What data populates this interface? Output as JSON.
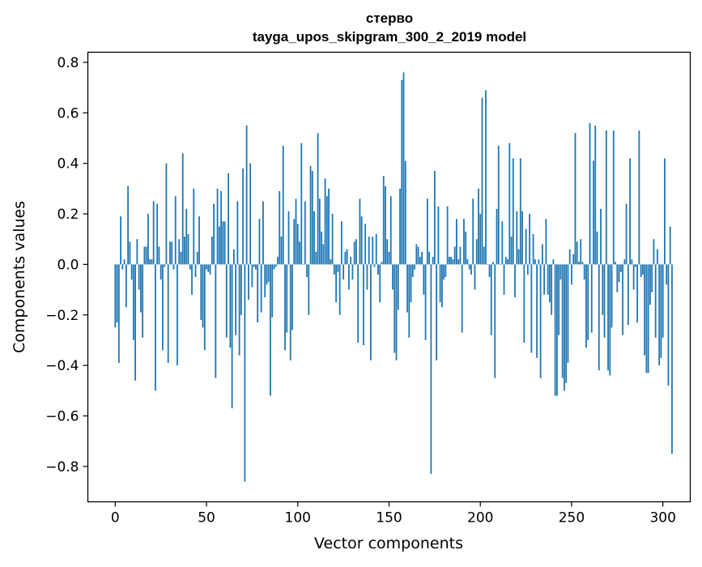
{
  "chart_data": {
    "type": "bar",
    "title_line1": "стерво",
    "title_line2": "tayga_upos_skipgram_300_2_2019 model",
    "xlabel": "Vector components",
    "ylabel": "Components values",
    "xlim": [
      -15,
      315
    ],
    "ylim": [
      -0.94,
      0.84
    ],
    "xticks": [
      0,
      50,
      100,
      150,
      200,
      250,
      300
    ],
    "xtick_labels": [
      "0",
      "50",
      "100",
      "150",
      "200",
      "250",
      "300"
    ],
    "yticks": [
      -0.8,
      -0.6,
      -0.4,
      -0.2,
      0.0,
      0.2,
      0.4,
      0.6,
      0.8
    ],
    "ytick_labels": [
      "−0.8",
      "−0.6",
      "−0.4",
      "−0.2",
      "0.0",
      "0.2",
      "0.4",
      "0.6",
      "0.8"
    ],
    "bar_color": "#1f77b4",
    "grid": false,
    "legend": "none",
    "values": [
      -0.25,
      -0.23,
      -0.39,
      0.19,
      -0.02,
      0.02,
      -0.17,
      0.31,
      0.09,
      -0.06,
      -0.3,
      -0.46,
      0.1,
      -0.1,
      -0.19,
      -0.29,
      0.07,
      0.07,
      0.2,
      0.02,
      0.02,
      0.25,
      -0.5,
      0.24,
      0.07,
      -0.06,
      -0.34,
      -0.01,
      0.4,
      -0.39,
      0.09,
      0.09,
      -0.02,
      0.27,
      -0.4,
      0.1,
      0.05,
      0.44,
      0.11,
      0.22,
      0.12,
      -0.02,
      -0.12,
      0.3,
      -0.05,
      0.05,
      0.19,
      -0.22,
      -0.25,
      -0.34,
      -0.02,
      -0.03,
      -0.04,
      0.11,
      0.24,
      -0.45,
      0.3,
      0.15,
      0.29,
      0.17,
      0.17,
      -0.29,
      0.36,
      -0.33,
      -0.57,
      0.06,
      -0.28,
      0.25,
      -0.36,
      -0.2,
      0.38,
      -0.86,
      0.55,
      -0.14,
      0.4,
      -0.09,
      -0.01,
      -0.02,
      -0.23,
      0.18,
      -0.19,
      0.25,
      -0.13,
      -0.08,
      -0.07,
      -0.52,
      -0.21,
      -0.02,
      -0.01,
      0.03,
      0.29,
      0.11,
      0.47,
      -0.34,
      -0.27,
      0.21,
      -0.38,
      -0.26,
      0.18,
      0.26,
      0.16,
      0.09,
      0.48,
      0.0,
      0.25,
      -0.05,
      -0.2,
      0.39,
      0.37,
      0.21,
      0.05,
      0.52,
      0.26,
      0.13,
      0.08,
      0.34,
      0.27,
      0.3,
      0.02,
      0.2,
      -0.04,
      -0.15,
      -0.03,
      -0.2,
      0.17,
      -0.06,
      0.05,
      0.06,
      -0.1,
      0.03,
      -0.06,
      0.09,
      0.1,
      -0.31,
      0.26,
      0.19,
      -0.32,
      0.16,
      -0.1,
      0.11,
      -0.38,
      0.11,
      -0.01,
      0.12,
      -0.04,
      -0.15,
      0.01,
      0.35,
      0.31,
      0.1,
      0.05,
      0.27,
      -0.1,
      -0.35,
      -0.38,
      -0.18,
      0.3,
      0.73,
      0.76,
      0.41,
      -0.19,
      -0.29,
      -0.15,
      -0.05,
      -0.02,
      0.08,
      0.07,
      0.03,
      0.05,
      -0.12,
      -0.3,
      0.26,
      0.05,
      -0.83,
      0.03,
      0.37,
      -0.38,
      0.23,
      -0.15,
      -0.17,
      -0.06,
      -0.05,
      0.23,
      0.03,
      0.03,
      0.02,
      0.07,
      0.18,
      0.02,
      0.07,
      -0.27,
      0.18,
      0.13,
      0.02,
      -0.02,
      -0.04,
      0.26,
      -0.1,
      0.1,
      0.3,
      0.2,
      0.66,
      0.07,
      0.69,
      0.0,
      -0.05,
      -0.28,
      0.01,
      -0.45,
      0.22,
      0.47,
      0.0,
      0.17,
      -0.12,
      0.03,
      0.02,
      0.48,
      0.11,
      0.42,
      -0.13,
      0.21,
      0.06,
      0.42,
      0.21,
      -0.31,
      0.14,
      -0.04,
      0.2,
      -0.35,
      0.12,
      0.02,
      -0.37,
      0.02,
      -0.45,
      0.08,
      -0.12,
      0.18,
      -0.12,
      -0.15,
      -0.2,
      0.02,
      -0.52,
      -0.52,
      -0.28,
      -0.06,
      -0.45,
      -0.5,
      -0.47,
      -0.39,
      0.06,
      -0.08,
      0.04,
      0.52,
      0.09,
      0.01,
      0.1,
      0.01,
      -0.06,
      -0.33,
      -0.3,
      0.56,
      -0.27,
      0.41,
      0.55,
      0.13,
      -0.42,
      0.22,
      -0.2,
      -0.29,
      0.53,
      -0.42,
      -0.44,
      -0.25,
      0.53,
      0.01,
      -0.11,
      -0.07,
      -0.03,
      -0.28,
      0.02,
      0.24,
      -0.24,
      0.42,
      0.02,
      -0.1,
      -0.01,
      -0.23,
      0.53,
      -0.05,
      -0.04,
      -0.36,
      -0.43,
      -0.43,
      -0.16,
      -0.11,
      0.1,
      -0.29,
      0.06,
      -0.4,
      -0.37,
      -0.29,
      0.42,
      -0.08,
      -0.48,
      0.15,
      -0.75
    ]
  }
}
